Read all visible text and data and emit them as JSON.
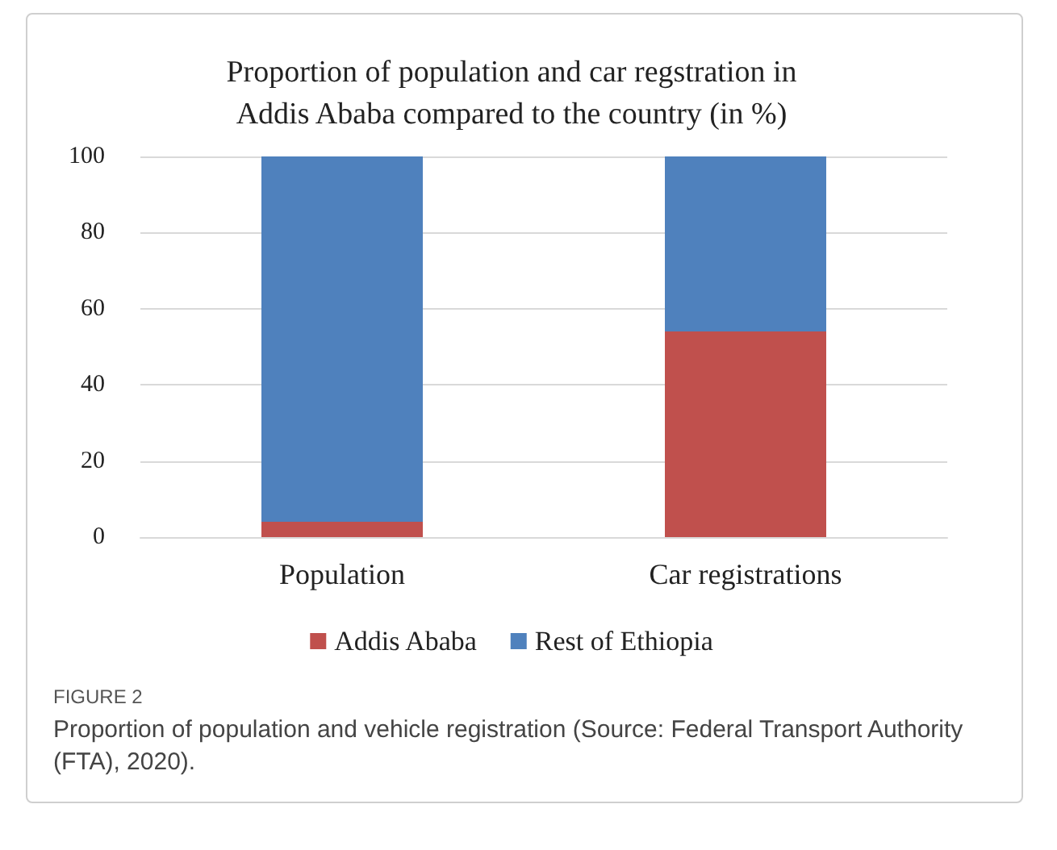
{
  "chart_data": {
    "type": "bar",
    "title": "Proportion of population and car regstration in\nAddis Ababa compared to the country (in %)",
    "categories": [
      "Population",
      "Car registrations"
    ],
    "series": [
      {
        "name": "Addis Ababa",
        "color": "#c0504d",
        "values": [
          4,
          54
        ]
      },
      {
        "name": "Rest of Ethiopia",
        "color": "#4f81bd",
        "values": [
          96,
          46
        ]
      }
    ],
    "stacked": true,
    "ylim": [
      0,
      100
    ],
    "yticks": [
      0,
      20,
      40,
      60,
      80,
      100
    ],
    "grid": "y",
    "legend": "bottom",
    "annotations": [
      "FIGURE 2",
      "Proportion of population and vehicle registration (Source: Federal Transport Authority (FTA), 2020)."
    ]
  }
}
